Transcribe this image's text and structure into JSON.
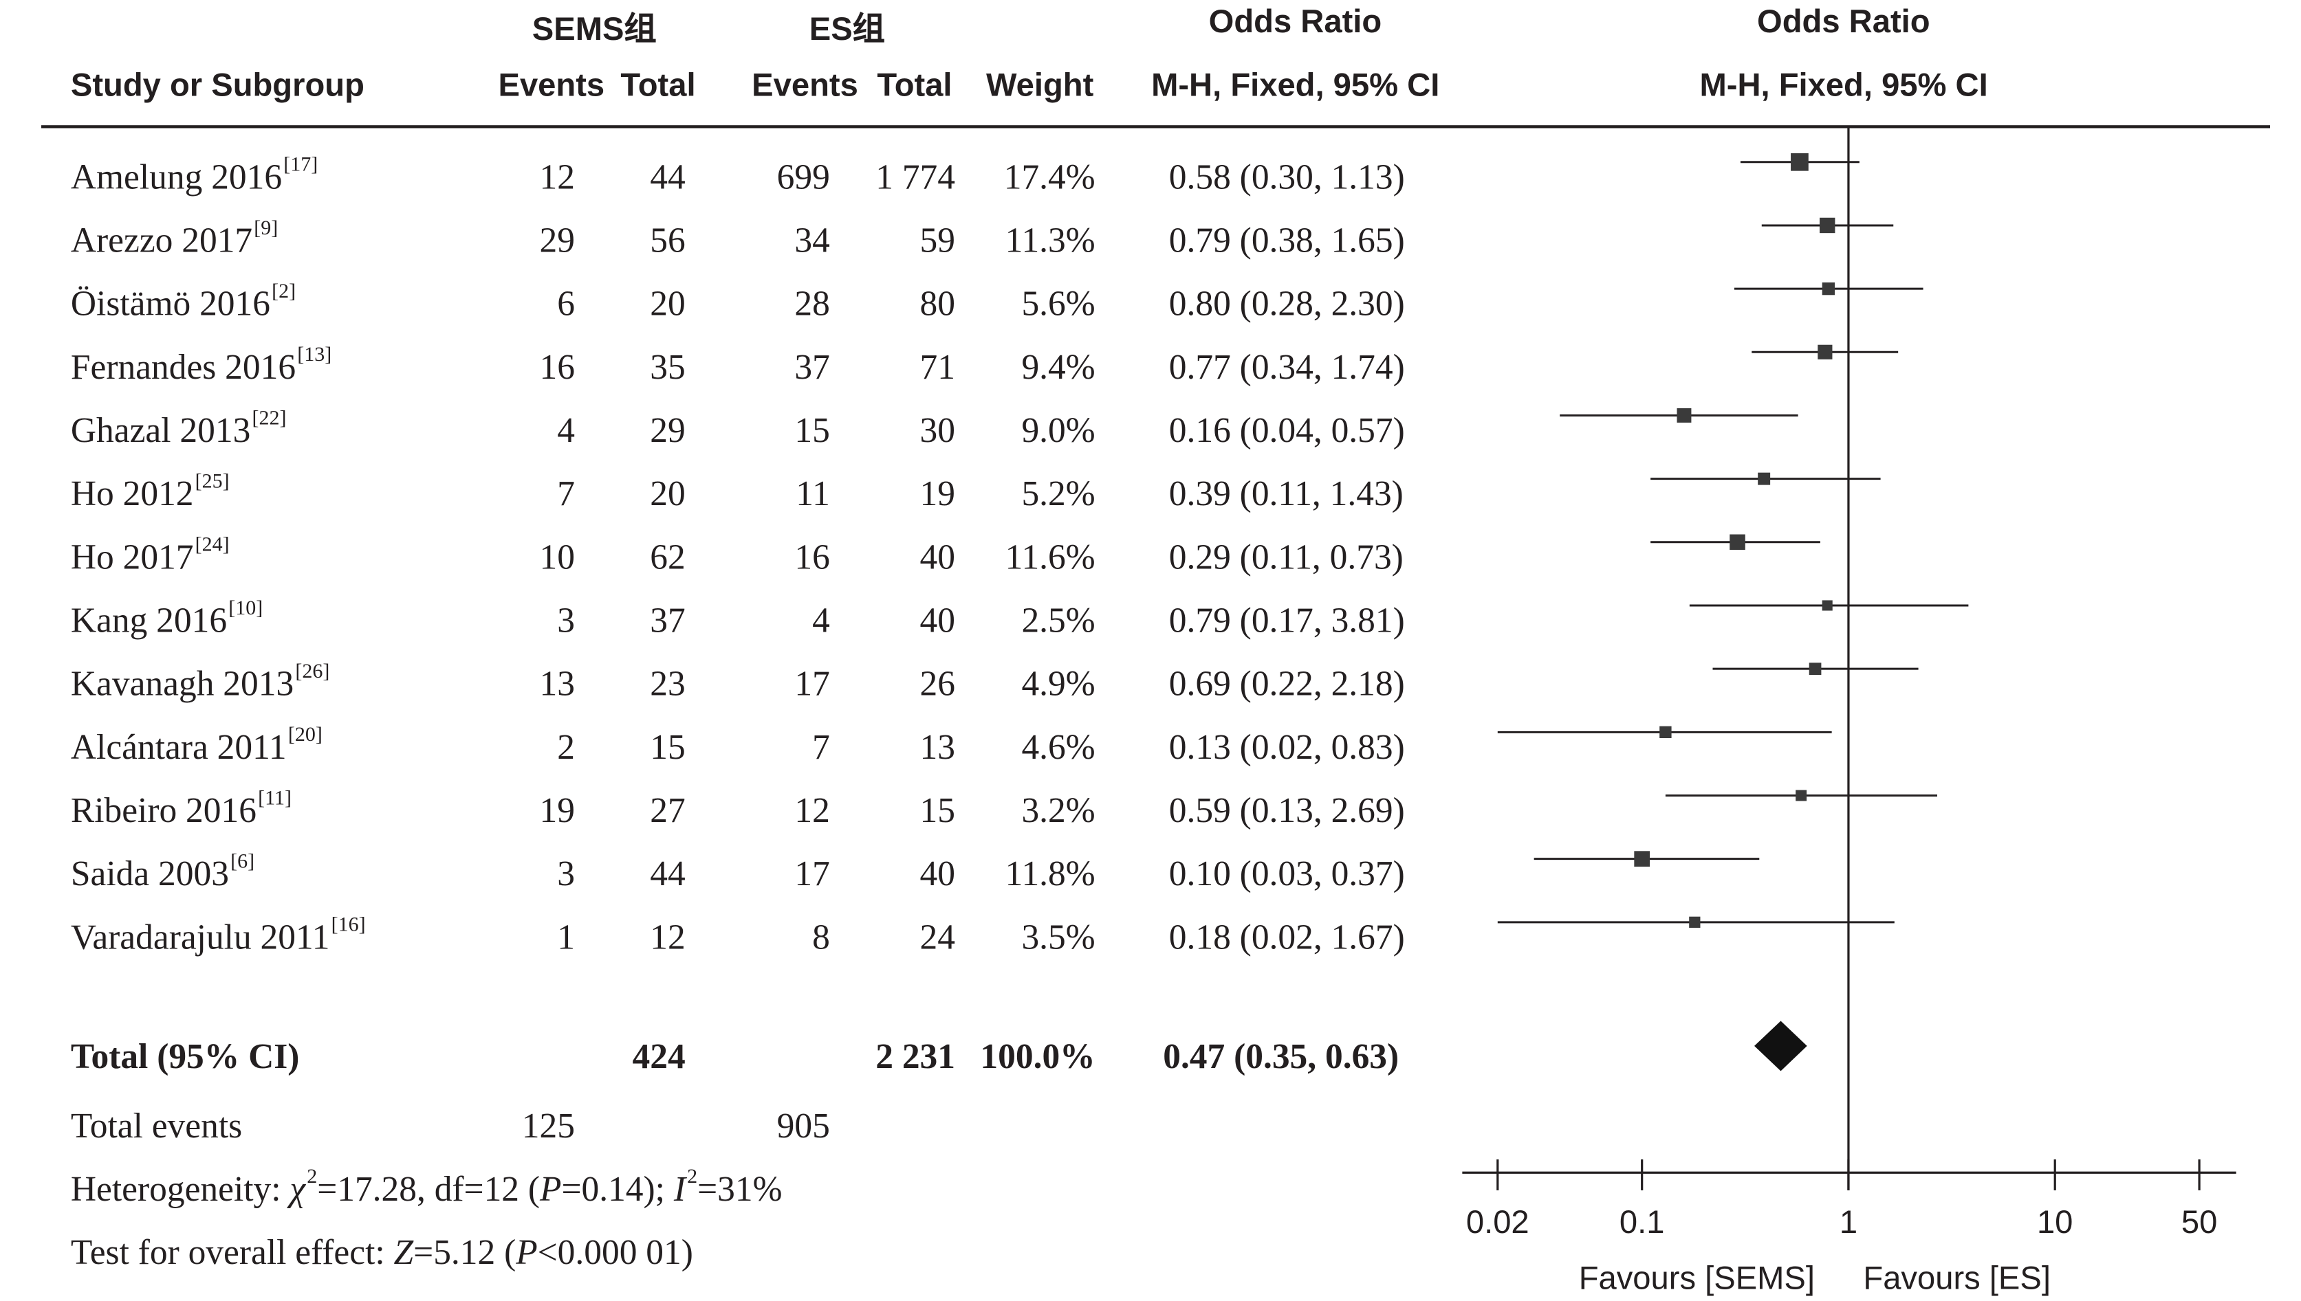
{
  "headers": {
    "study": "Study or Subgroup",
    "group1": "SEMS组",
    "group2": "ES组",
    "events": "Events",
    "total": "Total",
    "weight": "Weight",
    "or_title": "Odds Ratio",
    "or_method": "M-H, Fixed, 95% CI",
    "plot_title": "Odds Ratio",
    "plot_method": "M-H, Fixed, 95% CI"
  },
  "summary": {
    "label": "Total (95% CI)",
    "sems_total": "424",
    "es_total": "2 231",
    "weight": "100.0%",
    "ci_text": "0.47 (0.35, 0.63)",
    "total_events_label": "Total events",
    "sems_events": "125",
    "es_events": "905"
  },
  "heterogeneity": {
    "prefix": "Heterogeneity: ",
    "chi": "χ",
    "chi_sup": "2",
    "chi_val": "=17.28, df=12 (",
    "p": "P",
    "p_val": "=0.14); ",
    "i": "I",
    "i_sup": "2",
    "i_val": "=31%"
  },
  "overall": {
    "prefix": "Test for overall effect: ",
    "z": "Z",
    "z_val": "=5.12 (",
    "p": "P",
    "p_val": "<0.000 01)"
  },
  "favours": {
    "left": "Favours [SEMS]",
    "right": "Favours [ES]"
  },
  "chart_data": {
    "type": "forest",
    "x_scale": "log",
    "xlim": [
      0.02,
      50
    ],
    "x_ticks": [
      {
        "value": 0.02,
        "label": "0.02"
      },
      {
        "value": 0.1,
        "label": "0.1"
      },
      {
        "value": 1,
        "label": "1"
      },
      {
        "value": 10,
        "label": "10"
      },
      {
        "value": 50,
        "label": "50"
      }
    ],
    "studies": [
      {
        "name": "Amelung 2016",
        "ref": "[17]",
        "sems_events": "12",
        "sems_total": "44",
        "es_events": "699",
        "es_total": "1 774",
        "weight": "17.4%",
        "ci_text": "0.58 (0.30, 1.13)",
        "or": 0.58,
        "lo": 0.3,
        "hi": 1.13,
        "w": 17.4
      },
      {
        "name": "Arezzo 2017",
        "ref": "[9]",
        "sems_events": "29",
        "sems_total": "56",
        "es_events": "34",
        "es_total": "59",
        "weight": "11.3%",
        "ci_text": "0.79 (0.38, 1.65)",
        "or": 0.79,
        "lo": 0.38,
        "hi": 1.65,
        "w": 11.3
      },
      {
        "name": "Öistämö 2016",
        "ref": "[2]",
        "sems_events": "6",
        "sems_total": "20",
        "es_events": "28",
        "es_total": "80",
        "weight": "5.6%",
        "ci_text": "0.80 (0.28, 2.30)",
        "or": 0.8,
        "lo": 0.28,
        "hi": 2.3,
        "w": 5.6
      },
      {
        "name": "Fernandes 2016",
        "ref": "[13]",
        "sems_events": "16",
        "sems_total": "35",
        "es_events": "37",
        "es_total": "71",
        "weight": "9.4%",
        "ci_text": "0.77 (0.34, 1.74)",
        "or": 0.77,
        "lo": 0.34,
        "hi": 1.74,
        "w": 9.4
      },
      {
        "name": "Ghazal 2013",
        "ref": "[22]",
        "sems_events": "4",
        "sems_total": "29",
        "es_events": "15",
        "es_total": "30",
        "weight": "9.0%",
        "ci_text": "0.16 (0.04, 0.57)",
        "or": 0.16,
        "lo": 0.04,
        "hi": 0.57,
        "w": 9.0
      },
      {
        "name": "Ho 2012",
        "ref": "[25]",
        "sems_events": "7",
        "sems_total": "20",
        "es_events": "11",
        "es_total": "19",
        "weight": "5.2%",
        "ci_text": "0.39 (0.11, 1.43)",
        "or": 0.39,
        "lo": 0.11,
        "hi": 1.43,
        "w": 5.2
      },
      {
        "name": "Ho 2017",
        "ref": "[24]",
        "sems_events": "10",
        "sems_total": "62",
        "es_events": "16",
        "es_total": "40",
        "weight": "11.6%",
        "ci_text": "0.29 (0.11, 0.73)",
        "or": 0.29,
        "lo": 0.11,
        "hi": 0.73,
        "w": 11.6
      },
      {
        "name": "Kang 2016",
        "ref": "[10]",
        "sems_events": "3",
        "sems_total": "37",
        "es_events": "4",
        "es_total": "40",
        "weight": "2.5%",
        "ci_text": "0.79 (0.17, 3.81)",
        "or": 0.79,
        "lo": 0.17,
        "hi": 3.81,
        "w": 2.5
      },
      {
        "name": "Kavanagh 2013",
        "ref": "[26]",
        "sems_events": "13",
        "sems_total": "23",
        "es_events": "17",
        "es_total": "26",
        "weight": "4.9%",
        "ci_text": "0.69 (0.22, 2.18)",
        "or": 0.69,
        "lo": 0.22,
        "hi": 2.18,
        "w": 4.9
      },
      {
        "name": "Alcántara 2011",
        "ref": "[20]",
        "sems_events": "2",
        "sems_total": "15",
        "es_events": "7",
        "es_total": "13",
        "weight": "4.6%",
        "ci_text": "0.13 (0.02, 0.83)",
        "or": 0.13,
        "lo": 0.02,
        "hi": 0.83,
        "w": 4.6
      },
      {
        "name": "Ribeiro 2016",
        "ref": "[11]",
        "sems_events": "19",
        "sems_total": "27",
        "es_events": "12",
        "es_total": "15",
        "weight": "3.2%",
        "ci_text": "0.59 (0.13, 2.69)",
        "or": 0.59,
        "lo": 0.13,
        "hi": 2.69,
        "w": 3.2
      },
      {
        "name": "Saida 2003",
        "ref": "[6]",
        "sems_events": "3",
        "sems_total": "44",
        "es_events": "17",
        "es_total": "40",
        "weight": "11.8%",
        "ci_text": "0.10 (0.03, 0.37)",
        "or": 0.1,
        "lo": 0.03,
        "hi": 0.37,
        "w": 11.8
      },
      {
        "name": "Varadarajulu 2011",
        "ref": "[16]",
        "sems_events": "1",
        "sems_total": "12",
        "es_events": "8",
        "es_total": "24",
        "weight": "3.5%",
        "ci_text": "0.18 (0.02, 1.67)",
        "or": 0.18,
        "lo": 0.02,
        "hi": 1.67,
        "w": 3.5
      }
    ],
    "pooled": {
      "or": 0.47,
      "lo": 0.35,
      "hi": 0.63
    }
  }
}
